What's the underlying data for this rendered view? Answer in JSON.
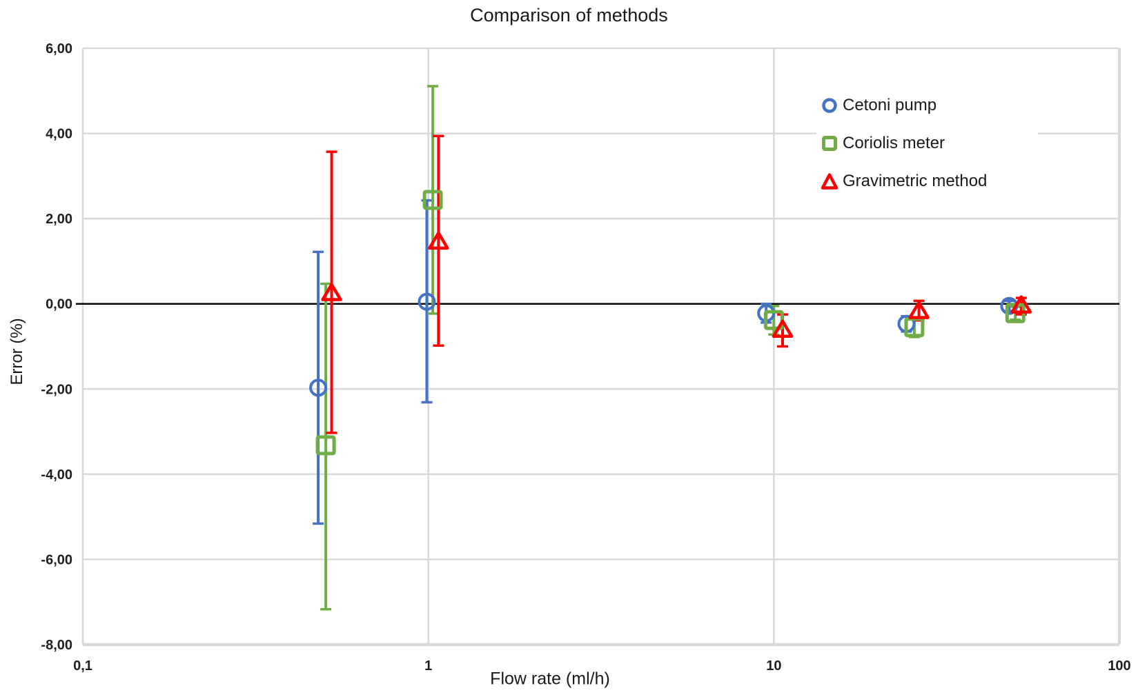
{
  "chart_data": {
    "type": "scatter",
    "title": "Comparison of methods",
    "grid": true,
    "legend_position": "top-right-inside",
    "grid_color": "#D9D9D9",
    "zero_line_color": "#000000",
    "text_color": "#1f1f1f",
    "axes": {
      "x": {
        "title": "Flow rate (ml/h)",
        "scale": "log",
        "min": 0.1,
        "max": 100,
        "ticks": [
          {
            "value": 0.1,
            "label": "0,1"
          },
          {
            "value": 1,
            "label": "1"
          },
          {
            "value": 10,
            "label": "10"
          },
          {
            "value": 100,
            "label": "100"
          }
        ]
      },
      "y": {
        "title": "Error (%)",
        "scale": "linear",
        "min": -8,
        "max": 6,
        "ticks": [
          {
            "value": 6,
            "label": "6,00"
          },
          {
            "value": 4,
            "label": "4,00"
          },
          {
            "value": 2,
            "label": "2,00"
          },
          {
            "value": 0,
            "label": "0,00"
          },
          {
            "value": -2,
            "label": "-2,00"
          },
          {
            "value": -4,
            "label": "-4,00"
          },
          {
            "value": -6,
            "label": "-6,00"
          },
          {
            "value": -8,
            "label": "-8,00"
          }
        ]
      }
    },
    "series": [
      {
        "name": "Cetoni pump",
        "marker": "circle",
        "color": "#4472C4",
        "points": [
          {
            "x": 0.48,
            "y": -1.97,
            "err_plus": 3.19,
            "err_minus": 3.19
          },
          {
            "x": 0.99,
            "y": 0.05,
            "err_plus": 2.38,
            "err_minus": 2.36
          },
          {
            "x": 9.5,
            "y": -0.22,
            "err_plus": 0.22,
            "err_minus": 0.22
          },
          {
            "x": 24.2,
            "y": -0.47,
            "err_plus": 0.18,
            "err_minus": 0.18
          },
          {
            "x": 48,
            "y": -0.05,
            "err_plus": 0.12,
            "err_minus": 0.12
          }
        ]
      },
      {
        "name": "Coriolis meter",
        "marker": "square",
        "color": "#70AD47",
        "points": [
          {
            "x": 0.505,
            "y": -3.32,
            "err_plus": 3.79,
            "err_minus": 3.85
          },
          {
            "x": 1.03,
            "y": 2.44,
            "err_plus": 2.67,
            "err_minus": 2.67
          },
          {
            "x": 10,
            "y": -0.38,
            "err_plus": 0.33,
            "err_minus": 0.34
          },
          {
            "x": 25.5,
            "y": -0.55,
            "err_plus": 0.23,
            "err_minus": 0.23
          },
          {
            "x": 50,
            "y": -0.22,
            "err_plus": 0.15,
            "err_minus": 0.15
          }
        ]
      },
      {
        "name": "Gravimetric method",
        "marker": "triangle",
        "color": "#FF0000",
        "points": [
          {
            "x": 0.525,
            "y": 0.26,
            "err_plus": 3.31,
            "err_minus": 3.29
          },
          {
            "x": 1.07,
            "y": 1.47,
            "err_plus": 2.47,
            "err_minus": 2.45
          },
          {
            "x": 10.6,
            "y": -0.6,
            "err_plus": 0.35,
            "err_minus": 0.4
          },
          {
            "x": 26.3,
            "y": -0.16,
            "err_plus": 0.23,
            "err_minus": 0.23
          },
          {
            "x": 52,
            "y": -0.03,
            "err_plus": 0.17,
            "err_minus": 0.22
          }
        ]
      }
    ]
  }
}
